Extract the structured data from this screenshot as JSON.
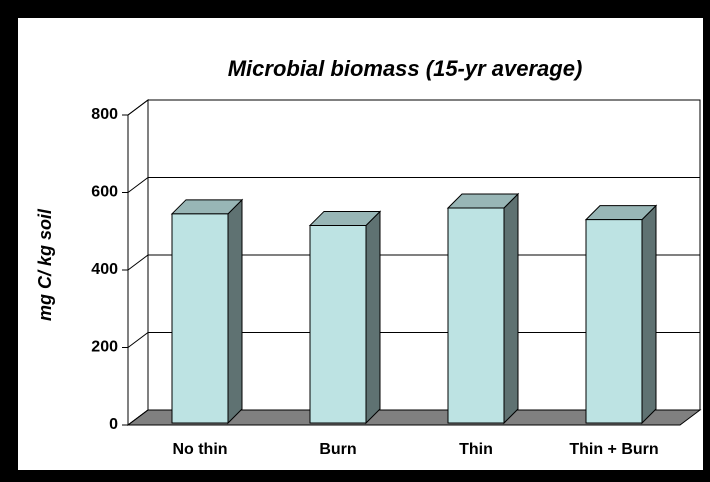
{
  "chart_data": {
    "type": "bar3d",
    "title": "Microbial biomass (15-yr average)",
    "y_label": "mg C/ kg soil",
    "categories": [
      "No thin",
      "Burn",
      "Thin",
      "Thin + Burn"
    ],
    "values": [
      545,
      515,
      560,
      530
    ],
    "ylim": [
      0,
      800
    ],
    "yticks": [
      0,
      200,
      400,
      600,
      800
    ],
    "grid": true,
    "colors": {
      "front": "#bde3e3",
      "top": "#98b6b6",
      "side": "#5f7272",
      "floor": "#808080"
    }
  }
}
